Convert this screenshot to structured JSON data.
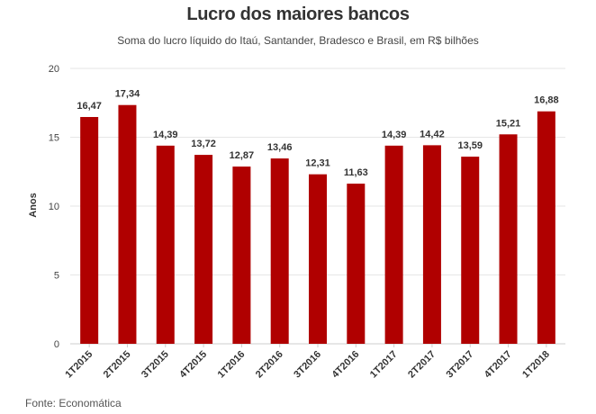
{
  "header": {
    "title": "Lucro dos maiores bancos",
    "subtitle": "Soma do lucro líquido do Itaú, Santander, Bradesco e Brasil, em R$ bilhões"
  },
  "footer": {
    "source": "Fonte: Economática"
  },
  "colors": {
    "bar": "#b00000",
    "grid": "#e6e6e6",
    "axis": "#cccccc"
  },
  "chart_data": {
    "type": "bar",
    "title": "Lucro dos maiores bancos",
    "subtitle": "Soma do lucro líquido do Itaú, Santander, Bradesco e Brasil, em R$ bilhões",
    "xlabel": "",
    "ylabel": "Anos",
    "ylim": [
      0,
      20
    ],
    "yticks": [
      0,
      5,
      10,
      15,
      20
    ],
    "grid": true,
    "categories": [
      "1T2015",
      "2T2015",
      "3T2015",
      "4T2015",
      "1T2016",
      "2T2016",
      "3T2016",
      "4T2016",
      "1T2017",
      "2T2017",
      "3T2017",
      "4T2017",
      "1T2018"
    ],
    "values": [
      16.47,
      17.34,
      14.39,
      13.72,
      12.87,
      13.46,
      12.31,
      11.63,
      14.39,
      14.42,
      13.59,
      15.21,
      16.88
    ],
    "data_labels": [
      "16,47",
      "17,34",
      "14,39",
      "13,72",
      "12,87",
      "13,46",
      "12,31",
      "11,63",
      "14,39",
      "14,42",
      "13,59",
      "15,21",
      "16,88"
    ]
  }
}
